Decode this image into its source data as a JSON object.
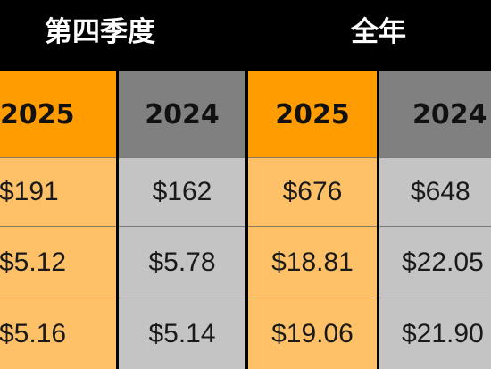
{
  "groups": {
    "q4": "第四季度",
    "full_year": "全年"
  },
  "years": [
    "2025",
    "2024",
    "2025",
    "2024"
  ],
  "rows": [
    [
      "$191",
      "$162",
      "$676",
      "$648"
    ],
    [
      "$5.12",
      "$5.78",
      "$18.81",
      "$22.05"
    ],
    [
      "$5.16",
      "$5.14",
      "$19.06",
      "$21.90"
    ]
  ],
  "colors": {
    "orange_header": "#ff9d00",
    "orange_cell": "#ffc168",
    "gray_header": "#808080",
    "gray_cell": "#c4c4c4",
    "background": "#000000"
  }
}
